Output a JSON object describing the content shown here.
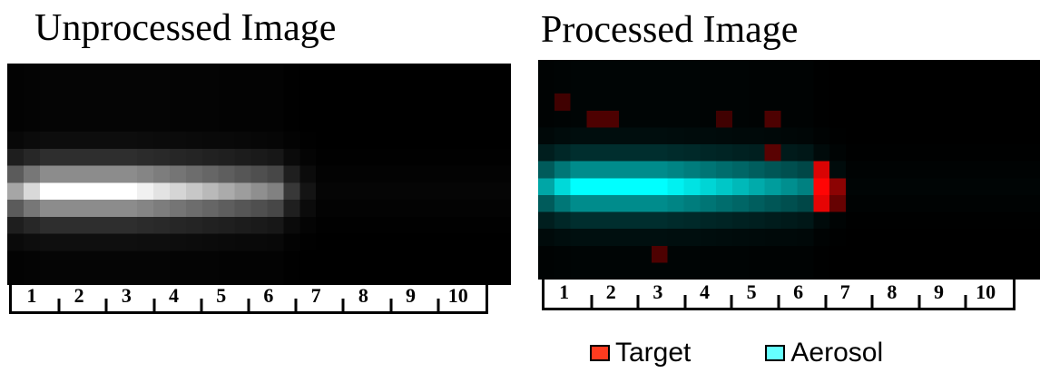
{
  "panels": {
    "left": {
      "title": "Unprocessed Image"
    },
    "right": {
      "title": "Processed Image"
    }
  },
  "scale": {
    "labels": [
      "1",
      "2",
      "3",
      "4",
      "5",
      "6",
      "7",
      "8",
      "9",
      "10"
    ]
  },
  "legend": {
    "items": [
      {
        "label": "Target",
        "color": "#ff3b1f"
      },
      {
        "label": "Aerosol",
        "color": "#66ffff"
      }
    ]
  },
  "colors": {
    "beam_unprocessed": "#ffffff",
    "beam_aerosol": "#00ffff",
    "target": "#ff2020"
  }
}
